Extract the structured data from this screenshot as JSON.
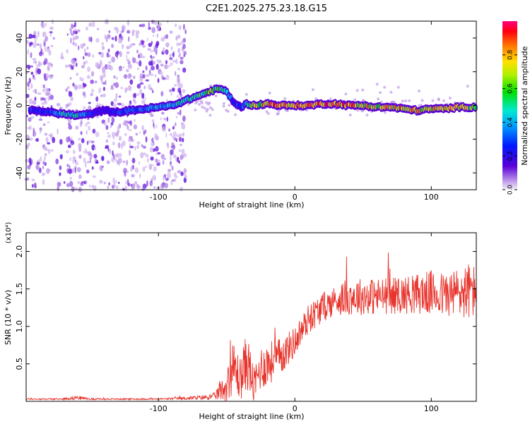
{
  "page_title": "C2E1.2025.275.23.18.G15",
  "chart_data": [
    {
      "type": "heatmap",
      "title": "C2E1.2025.275.23.18.G15",
      "xlabel": "Height of straight line (km)",
      "ylabel": "Frequency (Hz)",
      "xlim": [
        -197,
        133
      ],
      "ylim": [
        -50,
        50
      ],
      "xticks": [
        -100,
        0,
        100
      ],
      "xtick_labels": [
        "-100",
        "0",
        "100"
      ],
      "yticks": [
        -40,
        -20,
        0,
        20,
        40
      ],
      "ytick_labels": [
        "-40",
        "-20",
        "0",
        "20",
        "40"
      ],
      "colorbar": {
        "label": "Normalized spectral amplitude",
        "range": [
          0,
          1
        ],
        "ticks": [
          0,
          0.2,
          0.4,
          0.6,
          0.8
        ],
        "tick_labels": [
          "0.0",
          "0.2",
          "0.4",
          "0.6",
          "0.8"
        ]
      },
      "ridge": {
        "x": [
          -190,
          -180,
          -170,
          -160,
          -150,
          -140,
          -130,
          -120,
          -110,
          -100,
          -90,
          -80,
          -70,
          -60,
          -55,
          -50,
          -45,
          -40,
          -35,
          -30,
          -20,
          -10,
          0,
          10,
          20,
          30,
          40,
          50,
          60,
          70,
          80,
          90,
          100,
          110,
          120,
          130
        ],
        "frequency": [
          -3,
          -4,
          -5,
          -6,
          -5,
          -3,
          -4,
          -3,
          -2,
          -1,
          0,
          3,
          6,
          9,
          10,
          8,
          2,
          -1,
          1,
          0,
          1,
          0,
          0,
          0,
          1,
          1,
          0,
          0,
          -1,
          -1,
          -2,
          -3,
          -2,
          -2,
          -1,
          -1
        ],
        "amplitude": [
          0.3,
          0.35,
          0.5,
          0.55,
          0.3,
          0.2,
          0.3,
          0.35,
          0.4,
          0.45,
          0.5,
          0.55,
          0.6,
          0.7,
          0.65,
          0.5,
          0.3,
          0.3,
          0.45,
          0.7,
          0.9,
          0.95,
          0.95,
          0.9,
          0.95,
          0.9,
          0.9,
          0.85,
          0.8,
          0.85,
          0.9,
          0.85,
          0.8,
          0.85,
          0.8,
          0.75
        ]
      },
      "noise_region_x": [
        -197,
        -80
      ]
    },
    {
      "type": "line",
      "title": "",
      "xlabel": "Height of straight line (km)",
      "ylabel": "SNR (10 * v/v)",
      "scale_label": "(x10⁴)",
      "xlim": [
        -197,
        133
      ],
      "ylim": [
        0,
        2.25
      ],
      "xticks": [
        -100,
        0,
        100
      ],
      "xtick_labels": [
        "-100",
        "0",
        "100"
      ],
      "yticks": [
        0.5,
        1.0,
        1.5,
        2.0
      ],
      "ytick_labels": [
        "0.5",
        "1.0",
        "1.5",
        "2.0"
      ],
      "color": "#e8342c",
      "envelope": {
        "x": [
          -197,
          -170,
          -160,
          -150,
          -100,
          -80,
          -60,
          -50,
          -45,
          -40,
          -35,
          -30,
          -25,
          -20,
          -10,
          0,
          10,
          20,
          30,
          40,
          60,
          80,
          100,
          110,
          120,
          130,
          133
        ],
        "mean": [
          0.03,
          0.03,
          0.05,
          0.03,
          0.03,
          0.04,
          0.06,
          0.2,
          0.45,
          0.3,
          0.55,
          0.2,
          0.45,
          0.5,
          0.6,
          0.8,
          1.1,
          1.25,
          1.35,
          1.4,
          1.4,
          1.42,
          1.45,
          1.42,
          1.45,
          1.48,
          1.45
        ],
        "spread": [
          0.01,
          0.01,
          0.03,
          0.01,
          0.01,
          0.02,
          0.04,
          0.2,
          0.35,
          0.3,
          0.4,
          0.25,
          0.3,
          0.3,
          0.25,
          0.2,
          0.2,
          0.2,
          0.2,
          0.25,
          0.25,
          0.25,
          0.3,
          0.3,
          0.35,
          0.4,
          0.3
        ]
      }
    }
  ]
}
